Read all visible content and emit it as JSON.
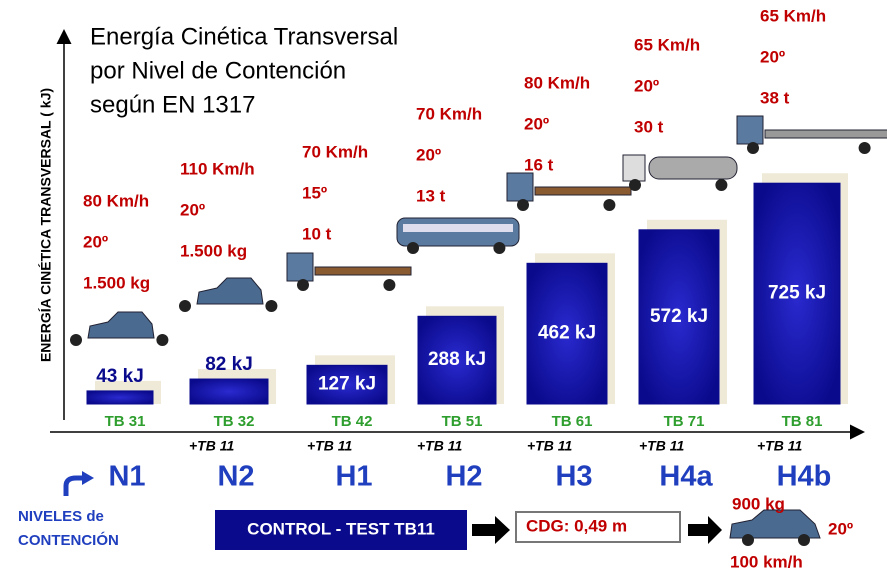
{
  "chart_data": {
    "type": "bar",
    "title_lines": [
      "Energía Cinética Transversal",
      "por Nivel de Contención",
      "según EN 1317"
    ],
    "y_label": "ENERGÍA CINÉTICA TRANSVERSAL  ( kJ)",
    "categories": [
      "N1",
      "N2",
      "H1",
      "H2",
      "H3",
      "H4a",
      "H4b"
    ],
    "values": [
      43,
      82,
      127,
      288,
      462,
      572,
      725
    ],
    "value_labels": [
      "43 kJ",
      "82 kJ",
      "127 kJ",
      "288 kJ",
      "462 kJ",
      "572 kJ",
      "725 kJ"
    ],
    "ylim": [
      0,
      1100
    ],
    "color": "#0a0a8c",
    "tests": [
      "TB 31",
      "TB 32",
      "TB 42",
      "TB 51",
      "TB 61",
      "TB 71",
      "TB 81"
    ],
    "extra_tests": [
      null,
      "+TB 11",
      "+TB 11",
      "+TB 11",
      "+TB 11",
      "+TB 11",
      "+TB 11"
    ],
    "conditions": [
      [
        "80 Km/h",
        "20º",
        "1.500 kg"
      ],
      [
        "110 Km/h",
        "20º",
        "1.500 kg"
      ],
      [
        "70 Km/h",
        "15º",
        "10 t"
      ],
      [
        "70 Km/h",
        "20º",
        "13 t"
      ],
      [
        "80 Km/h",
        "20º",
        "16 t"
      ],
      [
        "65 Km/h",
        "20º",
        "30 t"
      ],
      [
        "65 Km/h",
        "20º",
        "38 t"
      ]
    ],
    "levels_label": [
      "NIVELES de",
      "CONTENCIÓN"
    ],
    "control_test": "CONTROL - TEST  TB11",
    "cdg": "CDG: 0,49 m",
    "control_mass": "900 kg",
    "control_angle": "20º",
    "control_speed": "100 km/h"
  }
}
